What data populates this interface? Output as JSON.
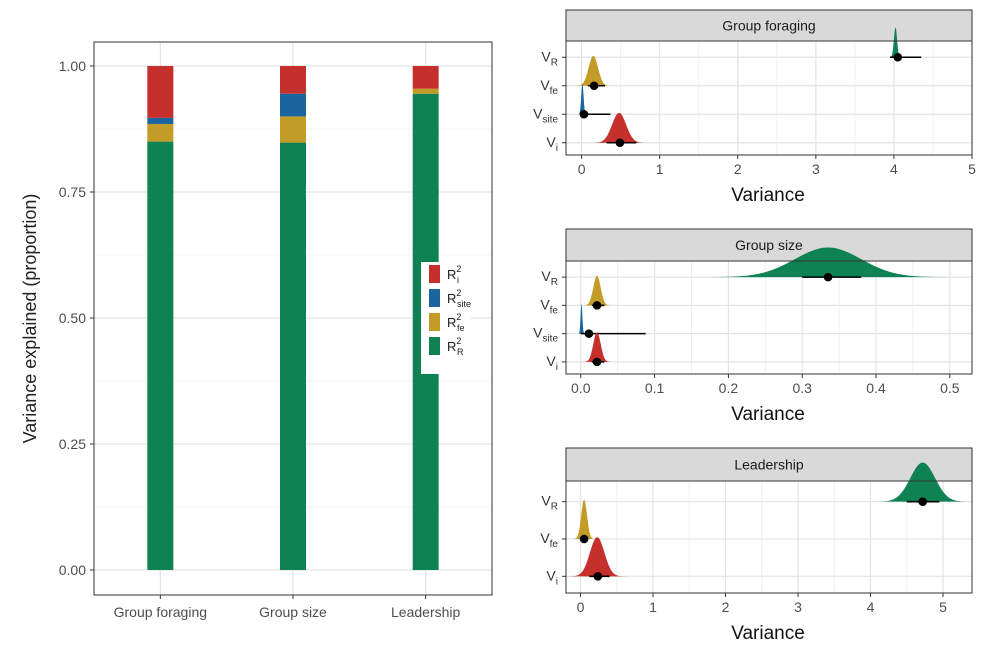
{
  "colors": {
    "R": "#0e8253",
    "fe": "#c39b27",
    "site": "#1b65a0",
    "i": "#c5302c",
    "grid": "#e3e3e3",
    "strip_bg": "#d9d9d9",
    "axis": "#333333"
  },
  "chart_data": [
    {
      "type": "bar",
      "stacked": true,
      "ylabel": "Variance explained (proportion)",
      "ylim": [
        0,
        1
      ],
      "yticks": [
        "0.00",
        "0.25",
        "0.50",
        "0.75",
        "1.00"
      ],
      "categories": [
        "Group foraging",
        "Group size",
        "Leadership"
      ],
      "series": [
        {
          "key": "R",
          "values": [
            0.85,
            0.848,
            0.945
          ]
        },
        {
          "key": "fe",
          "values": [
            0.035,
            0.052,
            0.01
          ]
        },
        {
          "key": "site",
          "values": [
            0.012,
            0.045,
            0.0
          ]
        },
        {
          "key": "i",
          "values": [
            0.103,
            0.055,
            0.045
          ]
        }
      ],
      "legend": {
        "position": "right",
        "items": [
          {
            "key": "i",
            "base": "R",
            "sup": "2",
            "sub": "i"
          },
          {
            "key": "site",
            "base": "R",
            "sup": "2",
            "sub": "site"
          },
          {
            "key": "fe",
            "base": "R",
            "sup": "2",
            "sub": "fe"
          },
          {
            "key": "R",
            "base": "R",
            "sup": "2",
            "sub": "R"
          }
        ]
      }
    },
    {
      "type": "density",
      "title": "Group foraging",
      "xlabel": "Variance",
      "xlim": [
        -0.2,
        5.0
      ],
      "xticks": [
        "0",
        "1",
        "2",
        "3",
        "4",
        "5"
      ],
      "rows": [
        {
          "base": "V",
          "sub": "R",
          "key": "R",
          "mode": 4.02,
          "point": 4.05,
          "lo": 3.95,
          "hi": 4.35,
          "sd": 0.02
        },
        {
          "base": "V",
          "sub": "fe",
          "key": "fe",
          "mode": 0.15,
          "point": 0.16,
          "lo": 0.08,
          "hi": 0.3,
          "sd": 0.06
        },
        {
          "base": "V",
          "sub": "site",
          "key": "site",
          "mode": 0.01,
          "point": 0.03,
          "lo": 0.0,
          "hi": 0.37,
          "sd": 0.015
        },
        {
          "base": "V",
          "sub": "i",
          "key": "i",
          "mode": 0.48,
          "point": 0.49,
          "lo": 0.32,
          "hi": 0.7,
          "sd": 0.09
        }
      ]
    },
    {
      "type": "density",
      "title": "Group size",
      "xlabel": "Variance",
      "xlim": [
        -0.02,
        0.53
      ],
      "xticks": [
        "0.0",
        "0.1",
        "0.2",
        "0.3",
        "0.4",
        "0.5"
      ],
      "rows": [
        {
          "base": "V",
          "sub": "R",
          "key": "R",
          "mode": 0.335,
          "point": 0.335,
          "lo": 0.3,
          "hi": 0.38,
          "sd": 0.045
        },
        {
          "base": "V",
          "sub": "fe",
          "key": "fe",
          "mode": 0.022,
          "point": 0.022,
          "lo": 0.015,
          "hi": 0.032,
          "sd": 0.005
        },
        {
          "base": "V",
          "sub": "site",
          "key": "site",
          "mode": 0.001,
          "point": 0.011,
          "lo": 0.0,
          "hi": 0.088,
          "sd": 0.0012
        },
        {
          "base": "V",
          "sub": "i",
          "key": "i",
          "mode": 0.022,
          "point": 0.022,
          "lo": 0.015,
          "hi": 0.032,
          "sd": 0.005
        }
      ]
    },
    {
      "type": "density",
      "title": "Leadership",
      "xlabel": "Variance",
      "xlim": [
        -0.2,
        5.4
      ],
      "xticks": [
        "0",
        "1",
        "2",
        "3",
        "4",
        "5"
      ],
      "rows": [
        {
          "base": "V",
          "sub": "R",
          "key": "R",
          "mode": 4.72,
          "point": 4.72,
          "lo": 4.5,
          "hi": 4.95,
          "sd": 0.17
        },
        {
          "base": "V",
          "sub": "fe",
          "key": "fe",
          "mode": 0.05,
          "point": 0.05,
          "lo": 0.01,
          "hi": 0.1,
          "sd": 0.04
        },
        {
          "base": "V",
          "sub": "i",
          "key": "i",
          "mode": 0.23,
          "point": 0.24,
          "lo": 0.12,
          "hi": 0.4,
          "sd": 0.1
        }
      ]
    }
  ]
}
